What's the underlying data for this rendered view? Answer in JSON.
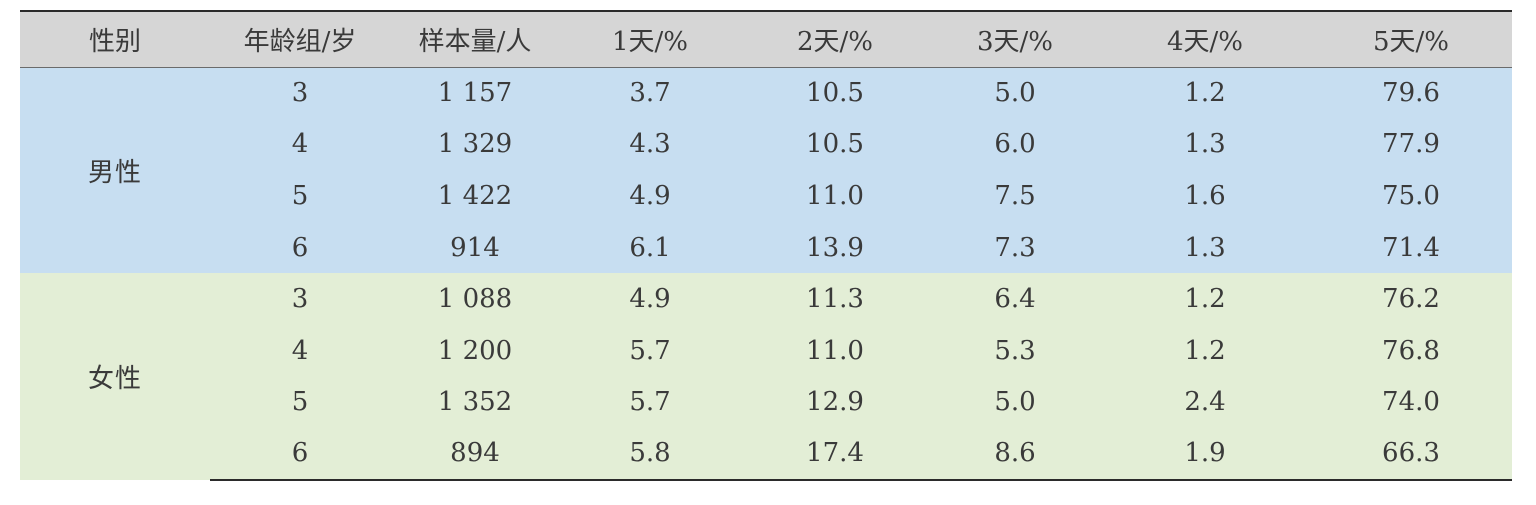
{
  "headers": [
    "性别",
    "年龄组/岁",
    "样本量/人",
    "1天/%",
    "2天/%",
    "3天/%",
    "4天/%",
    "5天/%"
  ],
  "groups": [
    {
      "sex": "男性",
      "rows": [
        [
          "3",
          "1 157",
          "3.7",
          "10.5",
          "5.0",
          "1.2",
          "79.6"
        ],
        [
          "4",
          "1 329",
          "4.3",
          "10.5",
          "6.0",
          "1.3",
          "77.9"
        ],
        [
          "5",
          "1 422",
          "4.9",
          "11.0",
          "7.5",
          "1.6",
          "75.0"
        ],
        [
          "6",
          "914",
          "6.1",
          "13.9",
          "7.3",
          "1.3",
          "71.4"
        ]
      ]
    },
    {
      "sex": "女性",
      "rows": [
        [
          "3",
          "1 088",
          "4.9",
          "11.3",
          "6.4",
          "1.2",
          "76.2"
        ],
        [
          "4",
          "1 200",
          "5.7",
          "11.0",
          "5.3",
          "1.2",
          "76.8"
        ],
        [
          "5",
          "1 352",
          "5.7",
          "12.9",
          "5.0",
          "2.4",
          "74.0"
        ],
        [
          "6",
          "894",
          "5.8",
          "17.4",
          "8.6",
          "1.9",
          "66.3"
        ]
      ]
    }
  ],
  "colors": {
    "header_bg": "#d6d6d6",
    "male_bg": "#c7def1",
    "female_bg": "#e3eed6",
    "text": "#3a3a3a",
    "rule": "#2b2b2b"
  }
}
